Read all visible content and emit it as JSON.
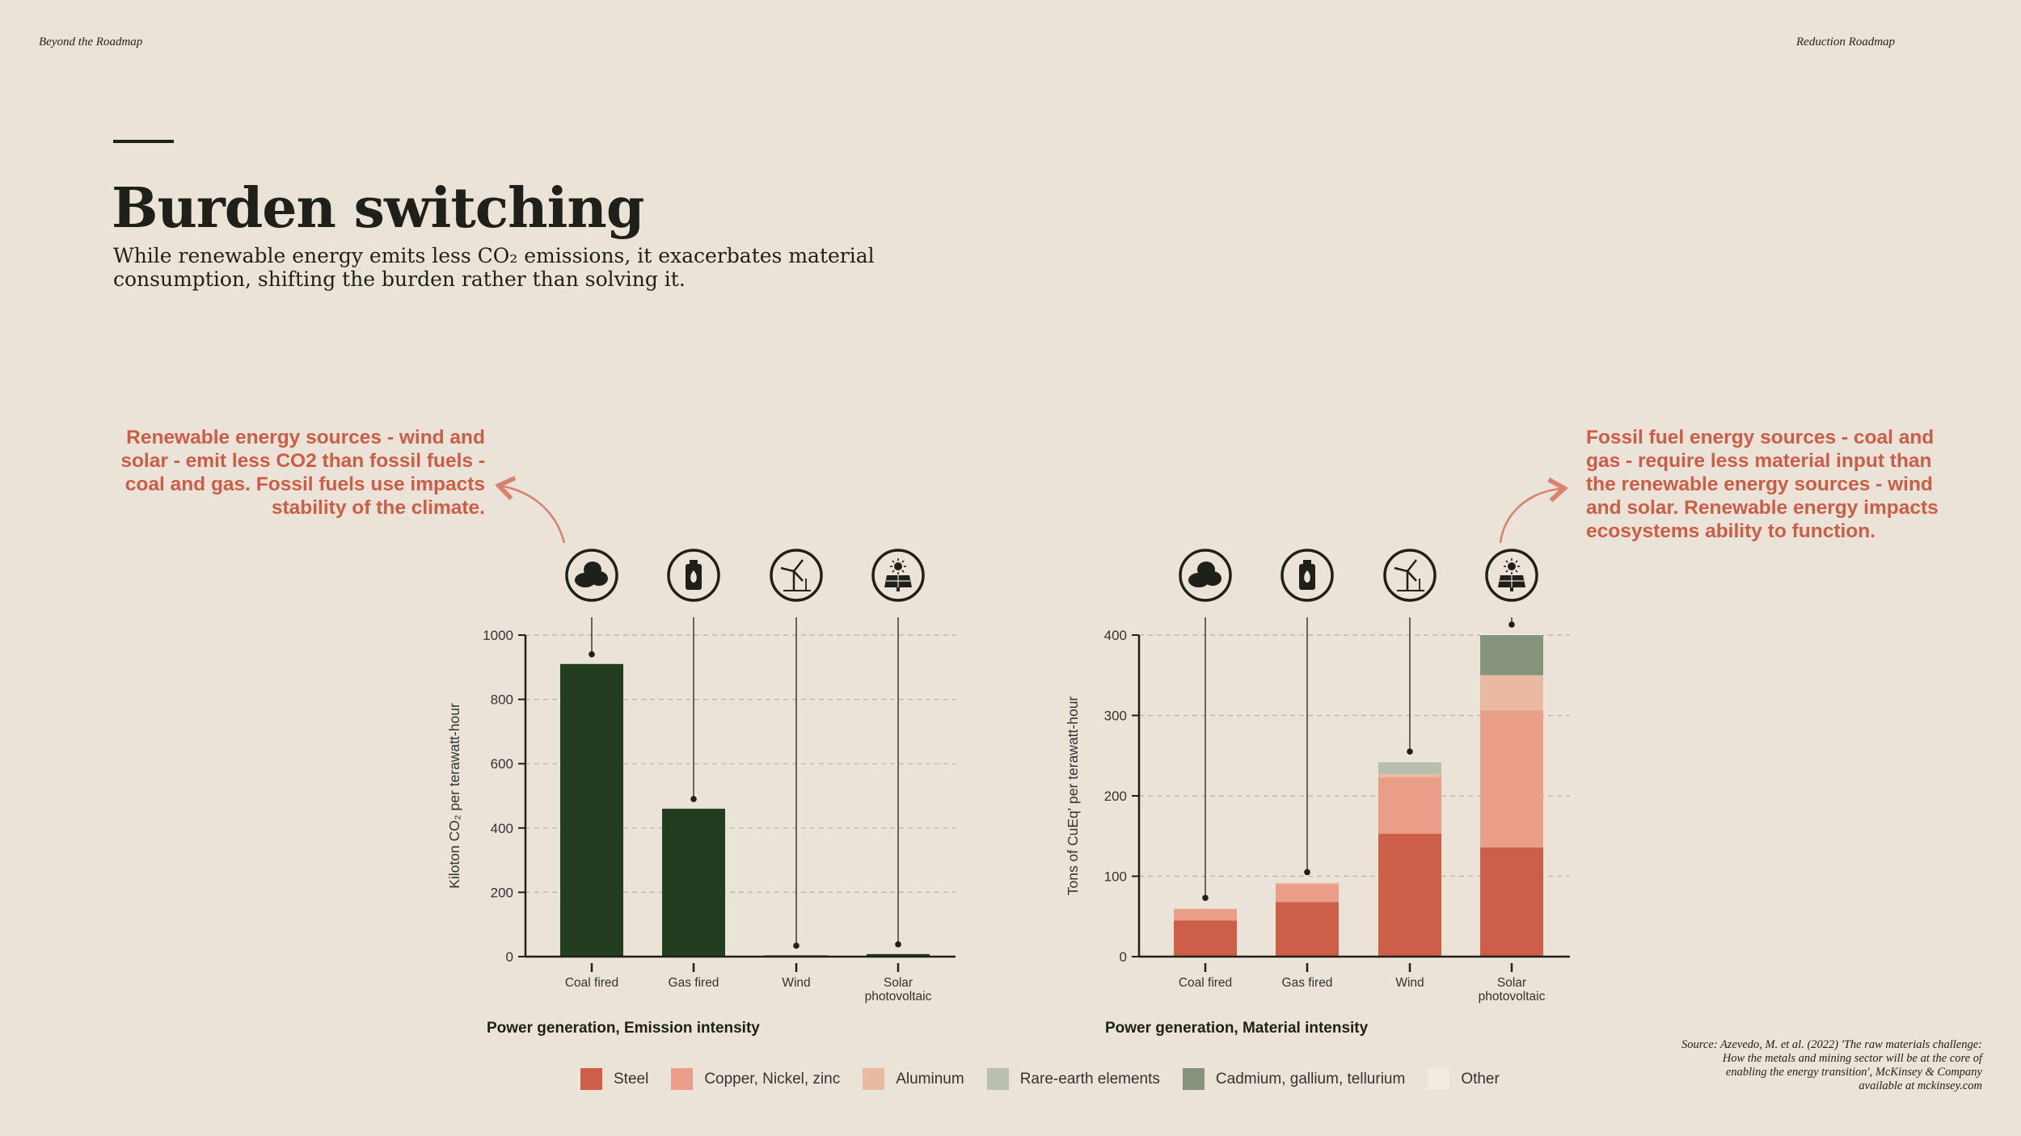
{
  "header": {
    "left": "Beyond the Roadmap",
    "right": "Reduction Roadmap"
  },
  "title": "Burden switching",
  "subtitle": "While renewable energy emits less CO₂ emissions, it exacerbates material consumption, shifting the burden rather than solving it.",
  "callouts": {
    "left": "Renewable energy sources - wind and solar - emit less CO2 than fossil fuels - coal and gas. Fossil fuels use impacts stability of the climate.",
    "right": "Fossil fuel energy sources - coal and gas - require less material input than the renewable energy sources - wind and solar. Renewable energy impacts ecosystems ability to function."
  },
  "icons": [
    "coal-icon",
    "gas-canister-icon",
    "wind-turbine-icon",
    "solar-panel-icon"
  ],
  "legend": [
    {
      "label": "Steel",
      "color": "#cd5e47"
    },
    {
      "label": "Copper, Nickel, zinc",
      "color": "#eb9e87"
    },
    {
      "label": "Aluminum",
      "color": "#e9b9a2"
    },
    {
      "label": "Rare-earth elements",
      "color": "#b9bfae"
    },
    {
      "label": "Cadmium, gallium, tellurium",
      "color": "#86947c"
    },
    {
      "label": "Other",
      "color": "#f1ebe4"
    }
  ],
  "source": "Source: Azevedo, M. et al. (2022) 'The raw materials challenge: How the metals and mining sector will be at the core of enabling the energy transition', McKinsey & Company available at mckinsey.com",
  "chart_data": [
    {
      "type": "bar",
      "title": "Power generation, Emission intensity",
      "ylabel": "Kiloton CO₂ per terawatt-hour",
      "categories": [
        "Coal fired",
        "Gas fired",
        "Wind",
        "Solar photovoltaic"
      ],
      "values": [
        910,
        460,
        4,
        8
      ],
      "ylim": [
        0,
        1000
      ],
      "yticks": [
        0,
        200,
        400,
        600,
        800,
        1000
      ],
      "bar_color": "#223d20",
      "grid": true
    },
    {
      "type": "bar",
      "stacked": true,
      "title": "Power generation, Material intensity",
      "ylabel": "Tons of CuEq' per terawatt-hour",
      "categories": [
        "Coal fired",
        "Gas fired",
        "Wind",
        "Solar photovoltaic"
      ],
      "ylim": [
        0,
        400
      ],
      "yticks": [
        0,
        100,
        200,
        300,
        400
      ],
      "grid": true,
      "series": [
        {
          "name": "Steel",
          "values": [
            45,
            68,
            153,
            136
          ]
        },
        {
          "name": "Copper, Nickel, zinc",
          "values": [
            14,
            22,
            70,
            170
          ]
        },
        {
          "name": "Aluminum",
          "values": [
            1,
            2,
            4,
            44
          ]
        },
        {
          "name": "Rare-earth elements",
          "values": [
            0,
            0,
            15,
            0
          ]
        },
        {
          "name": "Cadmium, gallium, tellurium",
          "values": [
            0,
            0,
            0,
            50
          ]
        },
        {
          "name": "Other",
          "values": [
            1,
            1,
            1,
            1
          ]
        }
      ]
    }
  ]
}
